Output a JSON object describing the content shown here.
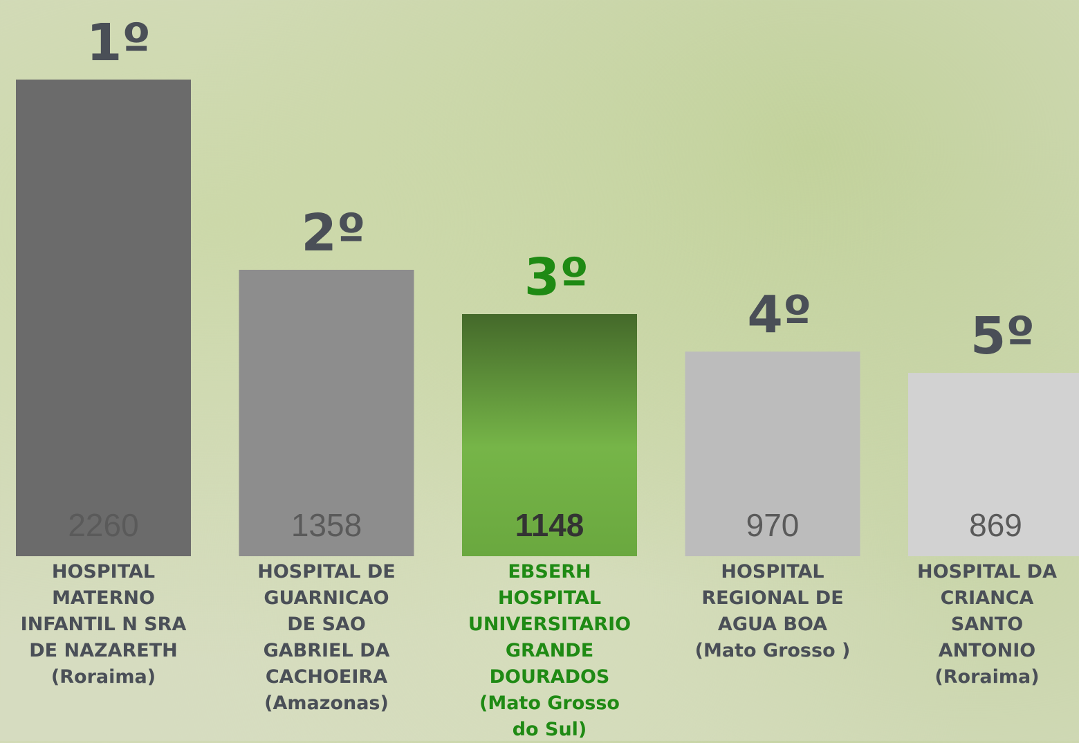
{
  "chart_data": {
    "type": "bar",
    "rank_labels": [
      "1º",
      "2º",
      "3º",
      "4º",
      "5º"
    ],
    "categories": [
      "HOSPITAL\nMATERNO\nINFANTIL N SRA\nDE NAZARETH\n(Roraima)",
      "HOSPITAL DE\nGUARNICAO\nDE SAO\nGABRIEL DA\nCACHOEIRA\n(Amazonas)",
      "EBSERH\nHOSPITAL\nUNIVERSITARIO\nGRANDE\nDOURADOS\n(Mato Grosso\ndo Sul)",
      "HOSPITAL\nREGIONAL DE\nAGUA BOA\n(Mato Grosso )",
      "HOSPITAL DA\nCRIANCA\nSANTO\nANTONIO\n(Roraima)"
    ],
    "values": [
      2260,
      1358,
      1148,
      970,
      869
    ],
    "colors": [
      "#6b6b6b",
      "#8d8d8d",
      "#6aa83f",
      "#bcbcbc",
      "#d2d2d2"
    ],
    "highlight_index": 2,
    "highlight_color": "#1f8a14"
  }
}
